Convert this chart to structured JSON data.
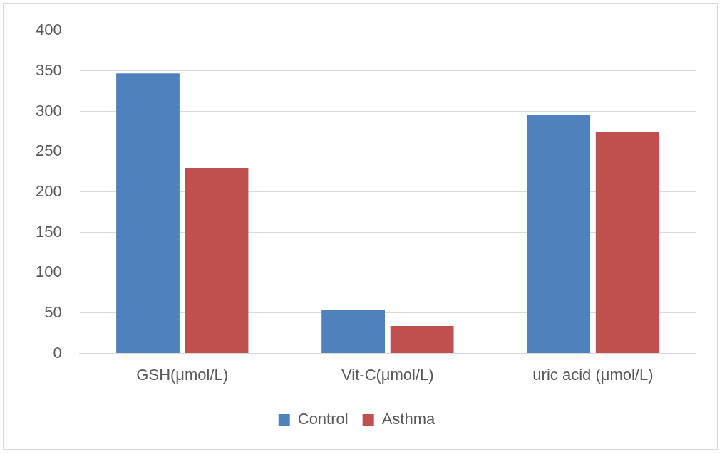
{
  "chart_data": {
    "type": "bar",
    "categories": [
      "GSH(μmol/L)",
      "Vit-C(μmol/L)",
      "uric acid (μmol/L)"
    ],
    "series": [
      {
        "name": "Control",
        "color": "#4f81bd",
        "values": [
          347,
          54,
          296
        ]
      },
      {
        "name": "Asthma",
        "color": "#c0504d",
        "values": [
          230,
          34,
          275
        ]
      }
    ],
    "ylim": [
      0,
      400
    ],
    "yticks": [
      0,
      50,
      100,
      150,
      200,
      250,
      300,
      350,
      400
    ],
    "grid": "y",
    "legend": "bottom"
  }
}
